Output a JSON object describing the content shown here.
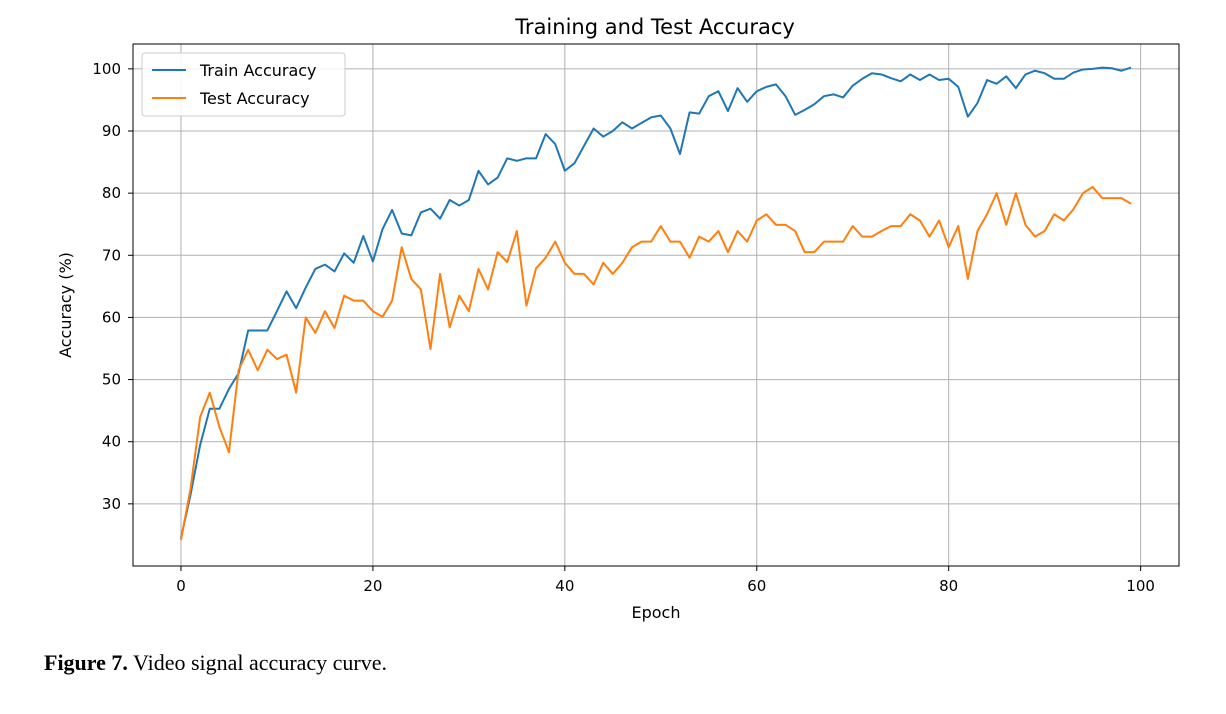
{
  "chart_data": {
    "type": "line",
    "title": "Training and Test Accuracy",
    "xlabel": "Epoch",
    "ylabel": "Accuracy (%)",
    "xlim": [
      -5,
      104
    ],
    "ylim": [
      20,
      104
    ],
    "xticks": [
      0,
      20,
      40,
      60,
      80,
      100
    ],
    "yticks": [
      30,
      40,
      50,
      60,
      70,
      80,
      90,
      100
    ],
    "grid": true,
    "legend_position": "upper-left",
    "series": [
      {
        "name": "Train Accuracy",
        "color": "#1f77b4",
        "x": [
          0,
          1,
          2,
          3,
          4,
          5,
          6,
          7,
          8,
          9,
          10,
          11,
          12,
          13,
          14,
          15,
          16,
          17,
          18,
          19,
          20,
          21,
          22,
          23,
          24,
          25,
          26,
          27,
          28,
          29,
          30,
          31,
          32,
          33,
          34,
          35,
          36,
          37,
          38,
          39,
          40,
          41,
          42,
          43,
          44,
          45,
          46,
          47,
          48,
          49,
          50,
          51,
          52,
          53,
          54,
          55,
          56,
          57,
          58,
          59,
          60,
          61,
          62,
          63,
          64,
          65,
          66,
          67,
          68,
          69,
          70,
          71,
          72,
          73,
          74,
          75,
          76,
          77,
          78,
          79,
          80,
          81,
          82,
          83,
          84,
          85,
          86,
          87,
          88,
          89,
          90,
          91,
          92,
          93,
          94,
          95,
          96,
          97,
          98,
          99
        ],
        "values": [
          24.5,
          31.5,
          39.5,
          45.3,
          45.3,
          48.5,
          51.0,
          57.9,
          57.9,
          57.9,
          61.0,
          64.2,
          61.5,
          64.8,
          67.8,
          68.5,
          67.4,
          70.3,
          68.8,
          73.1,
          69.0,
          74.2,
          77.3,
          73.5,
          73.2,
          76.9,
          77.5,
          75.9,
          78.9,
          78.0,
          78.9,
          83.6,
          81.4,
          82.5,
          85.6,
          85.2,
          85.6,
          85.6,
          89.5,
          87.9,
          83.6,
          84.8,
          87.6,
          90.4,
          89.1,
          90.0,
          91.4,
          90.4,
          91.3,
          92.2,
          92.5,
          90.4,
          86.3,
          93.0,
          92.8,
          95.6,
          96.4,
          93.2,
          96.9,
          94.7,
          96.4,
          97.1,
          97.5,
          95.6,
          92.6,
          93.4,
          94.3,
          95.6,
          95.9,
          95.4,
          97.3,
          98.4,
          99.3,
          99.1,
          98.5,
          98.0,
          99.1,
          98.2,
          99.1,
          98.2,
          98.4,
          97.1,
          92.3,
          94.5,
          98.2,
          97.6,
          98.8,
          96.9,
          99.1,
          99.7,
          99.3,
          98.4,
          98.4,
          99.4,
          99.9,
          100.0,
          100.2,
          100.1,
          99.7,
          100.2
        ]
      },
      {
        "name": "Test Accuracy",
        "color": "#ff7f0e",
        "x": [
          0,
          1,
          2,
          3,
          4,
          5,
          6,
          7,
          8,
          9,
          10,
          11,
          12,
          13,
          14,
          15,
          16,
          17,
          18,
          19,
          20,
          21,
          22,
          23,
          24,
          25,
          26,
          27,
          28,
          29,
          30,
          31,
          32,
          33,
          34,
          35,
          36,
          37,
          38,
          39,
          40,
          41,
          42,
          43,
          44,
          45,
          46,
          47,
          48,
          49,
          50,
          51,
          52,
          53,
          54,
          55,
          56,
          57,
          58,
          59,
          60,
          61,
          62,
          63,
          64,
          65,
          66,
          67,
          68,
          69,
          70,
          71,
          72,
          73,
          74,
          75,
          76,
          77,
          78,
          79,
          80,
          81,
          82,
          83,
          84,
          85,
          86,
          87,
          88,
          89,
          90,
          91,
          92,
          93,
          94,
          95,
          96,
          97,
          98,
          99
        ],
        "values": [
          24.2,
          32.5,
          44.0,
          47.9,
          42.4,
          38.3,
          51.5,
          54.8,
          51.5,
          54.8,
          53.3,
          54.0,
          47.9,
          60.0,
          57.5,
          61.0,
          58.3,
          63.5,
          62.7,
          62.7,
          61.0,
          60.1,
          62.7,
          71.3,
          66.2,
          64.5,
          54.9,
          67.0,
          58.4,
          63.5,
          61.0,
          67.8,
          64.5,
          70.5,
          68.9,
          73.9,
          61.9,
          67.9,
          69.6,
          72.2,
          68.8,
          67.0,
          67.0,
          65.3,
          68.8,
          67.0,
          68.8,
          71.3,
          72.2,
          72.2,
          74.7,
          72.2,
          72.2,
          69.6,
          73.0,
          72.2,
          73.9,
          70.5,
          73.9,
          72.2,
          75.6,
          76.6,
          74.9,
          74.9,
          73.9,
          70.5,
          70.5,
          72.2,
          72.2,
          72.2,
          74.7,
          73.0,
          73.0,
          73.9,
          74.7,
          74.7,
          76.6,
          75.6,
          73.0,
          75.6,
          71.3,
          74.7,
          66.2,
          73.9,
          76.6,
          80.0,
          74.9,
          80.0,
          74.9,
          73.0,
          73.9,
          76.6,
          75.6,
          77.4,
          80.0,
          81.0,
          79.2,
          79.2,
          79.2,
          78.3
        ]
      }
    ]
  },
  "caption": {
    "label": "Figure 7.",
    "text": " Video signal accuracy curve."
  }
}
